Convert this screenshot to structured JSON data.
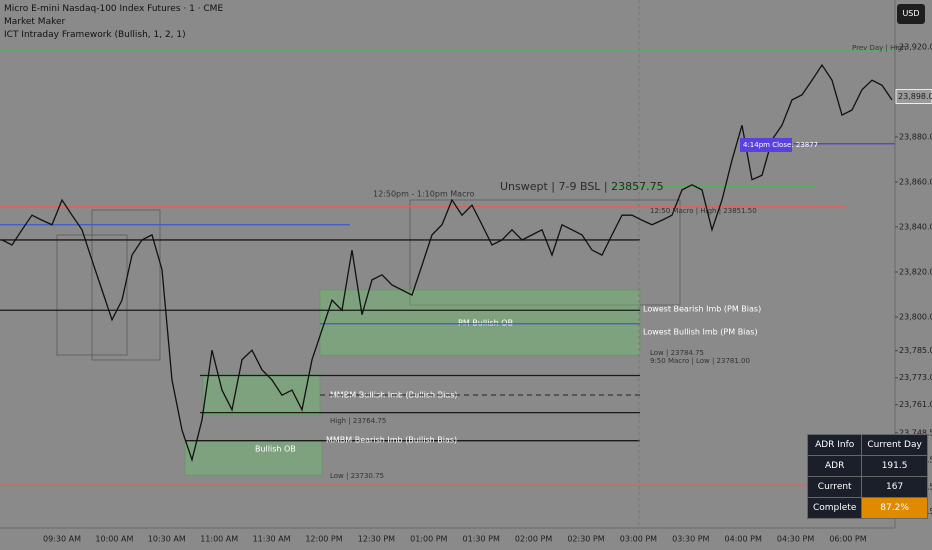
{
  "header": {
    "symbol": "Micro E-mini Nasdaq-100 Index Futures · 1 · CME",
    "indicator_1": "Market Maker",
    "indicator_2": "ICT Intraday Framework (Bullish, 1, 2, 1)",
    "currency": "USD"
  },
  "chart_data": {
    "type": "line",
    "x_labels": [
      "09:30 AM",
      "10:00 AM",
      "10:30 AM",
      "11:00 AM",
      "11:30 AM",
      "12:00 PM",
      "12:30 PM",
      "01:00 PM",
      "01:30 PM",
      "02:00 PM",
      "02:30 PM",
      "03:00 PM",
      "03:30 PM",
      "04:00 PM",
      "04:30 PM",
      "06:00 PM"
    ],
    "ylim": [
      23706.2,
      23940.9
    ],
    "yticks": [
      {
        "value": 23920,
        "label": "23,920.00"
      },
      {
        "value": 23880,
        "label": "23,880.00"
      },
      {
        "value": 23860,
        "label": "23,860.00"
      },
      {
        "value": 23840,
        "label": "23,840.00"
      },
      {
        "value": 23820,
        "label": "23,820.00"
      },
      {
        "value": 23800,
        "label": "23,800.00"
      },
      {
        "value": 23785,
        "label": "23,785.00"
      },
      {
        "value": 23773,
        "label": "23,773.00"
      },
      {
        "value": 23761,
        "label": "23,761.00"
      },
      {
        "value": 23748.5,
        "label": "23,748.50"
      },
      {
        "value": 23736.5,
        "label": "23,736.50"
      },
      {
        "value": 23724.5,
        "label": "23,724.50"
      },
      {
        "value": 23713.5,
        "label": "23,713.50"
      }
    ],
    "current_price": {
      "value": 23898,
      "label": "23,898.00"
    },
    "price": {
      "color": "#111111",
      "values": [
        23834.25,
        23832,
        23838.75,
        23845.25,
        23843,
        23841,
        23852,
        23845.25,
        23838.75,
        23825.25,
        23812,
        23798.75,
        23807.5,
        23827.5,
        23834.25,
        23836.5,
        23821,
        23772,
        23749.75,
        23736.5,
        23754.25,
        23785.25,
        23767.5,
        23758.75,
        23781,
        23785.25,
        23776.5,
        23772,
        23765.25,
        23767.5,
        23758.75,
        23781,
        23794.25,
        23807.5,
        23803,
        23829.75,
        23801,
        23816.5,
        23818.75,
        23814.25,
        23812,
        23809.75,
        23823,
        23836.5,
        23841,
        23852,
        23845.25,
        23849.75,
        23841,
        23832,
        23834.25,
        23838.75,
        23834.25,
        23836.5,
        23838.75,
        23827.5,
        23841,
        23838.75,
        23836.5,
        23829.75,
        23827.5,
        23836.5,
        23845.25,
        23845.25,
        23843,
        23841,
        23843,
        23845.25,
        23856.5,
        23858.75,
        23856.5,
        23838.75,
        23852,
        23869.75,
        23885.25,
        23861,
        23863,
        23878.75,
        23885.25,
        23896.5,
        23898.75,
        23905.25,
        23912,
        23905.25,
        23889.75,
        23892,
        23901,
        23905.25,
        23903,
        23896.5
      ]
    },
    "levels": [
      {
        "price": 23918.75,
        "color": "#3fbf4a"
      },
      {
        "price": 23849,
        "color": "#e0605a"
      },
      {
        "price": 23725.25,
        "color": "#e0605a"
      },
      {
        "price": 23877,
        "color": "#4a3be0"
      },
      {
        "price": 23857.75,
        "color": "#3fbf4a"
      },
      {
        "price": 23834.25,
        "color": "#1a1a1a"
      },
      {
        "price": 23803,
        "color": "#1a1a1a"
      },
      {
        "price": 23774,
        "color": "#1a1a1a"
      },
      {
        "price": 23757.5,
        "color": "#1a1a1a"
      },
      {
        "price": 23745,
        "color": "#1a1a1a"
      },
      {
        "price": 23841,
        "color": "#3a5ad0"
      },
      {
        "price": 23797,
        "color": "#3a5ad0"
      }
    ],
    "zones": [
      {
        "top": 23812,
        "bottom": 23783,
        "label": "PM Bullish OB"
      },
      {
        "top": 23745.25,
        "bottom": 23729.75,
        "label": "Bullish OB"
      },
      {
        "top": 23774.25,
        "bottom": 23756.5,
        "label": "MMBM Bullish Imb (Bullish Bias)"
      }
    ],
    "annotations": [
      "Prev Day | High",
      "Unswept | 7-9 BSL | 23857.75",
      "4:14pm Close: 23877",
      "12:50pm - 1:10pm Macro",
      "MMBM Bearish Imb (Bullish Bias)",
      "Lowest Bearish Imb (PM Bias)",
      "Lowest Bullish Imb (PM Bias)",
      "High | 23764.75",
      "Low | 23730.75",
      "Low | 23784.75",
      "9:50 Macro | Low | 23781.00",
      "12:50 Macro | High | 23851.50"
    ]
  },
  "adr_table": {
    "header": [
      "ADR Info",
      "Current Day"
    ],
    "rows": [
      [
        "ADR",
        "191.5"
      ],
      [
        "Current",
        "167"
      ],
      [
        "Complete",
        "87.2%"
      ]
    ]
  }
}
